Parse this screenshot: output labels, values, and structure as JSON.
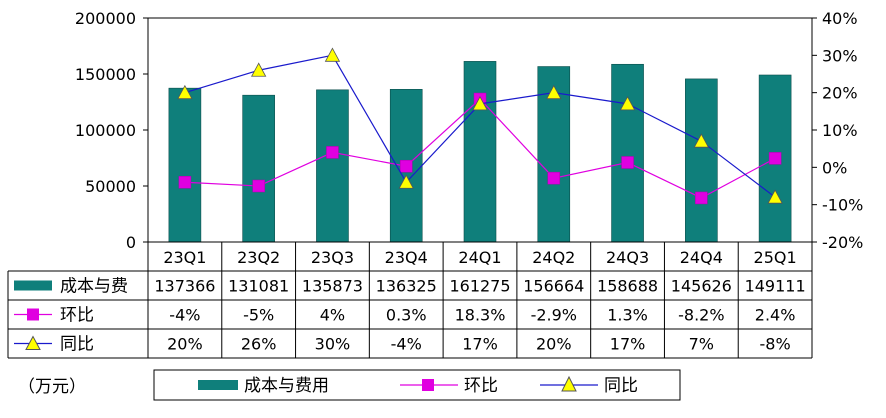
{
  "chart_data": {
    "type": "bar",
    "categories": [
      "23Q1",
      "23Q2",
      "23Q3",
      "23Q4",
      "24Q1",
      "24Q2",
      "24Q3",
      "24Q4",
      "25Q1"
    ],
    "series": [
      {
        "name": "成本与费用",
        "type": "bar",
        "axis": "left",
        "values": [
          137366,
          131081,
          135873,
          136325,
          161275,
          156664,
          158688,
          145626,
          149111
        ],
        "labels": [
          "137366",
          "131081",
          "135873",
          "136325",
          "161275",
          "156664",
          "158688",
          "145626",
          "149111"
        ],
        "color": "#0f7f7b"
      },
      {
        "name": "环比",
        "type": "line",
        "axis": "right",
        "values": [
          -4,
          -5,
          4,
          0.3,
          18.3,
          -2.9,
          1.3,
          -8.2,
          2.4
        ],
        "labels": [
          "-4%",
          "-5%",
          "4%",
          "0.3%",
          "18.3%",
          "-2.9%",
          "1.3%",
          "-8.2%",
          "2.4%"
        ],
        "color": "#e000e0",
        "marker": "square"
      },
      {
        "name": "同比",
        "type": "line",
        "axis": "right",
        "values": [
          20,
          26,
          30,
          -4,
          17,
          20,
          17,
          7,
          -8
        ],
        "labels": [
          "20%",
          "26%",
          "30%",
          "-4%",
          "17%",
          "20%",
          "17%",
          "7%",
          "-8%"
        ],
        "color": "#1a1acc",
        "marker": "triangle"
      }
    ],
    "left_axis": {
      "min": 0,
      "max": 200000,
      "ticks": [
        "0",
        "50000",
        "100000",
        "150000",
        "200000"
      ]
    },
    "right_axis": {
      "min": -20,
      "max": 40,
      "ticks": [
        "-20%",
        "-10%",
        "0%",
        "10%",
        "20%",
        "30%",
        "40%"
      ]
    },
    "table_row_labels": [
      "成本与费",
      "环比",
      "同比"
    ],
    "legend": {
      "position": "bottom",
      "items": [
        "成本与费用",
        "环比",
        "同比"
      ]
    },
    "unit_note": "（万元）",
    "grid": false
  }
}
